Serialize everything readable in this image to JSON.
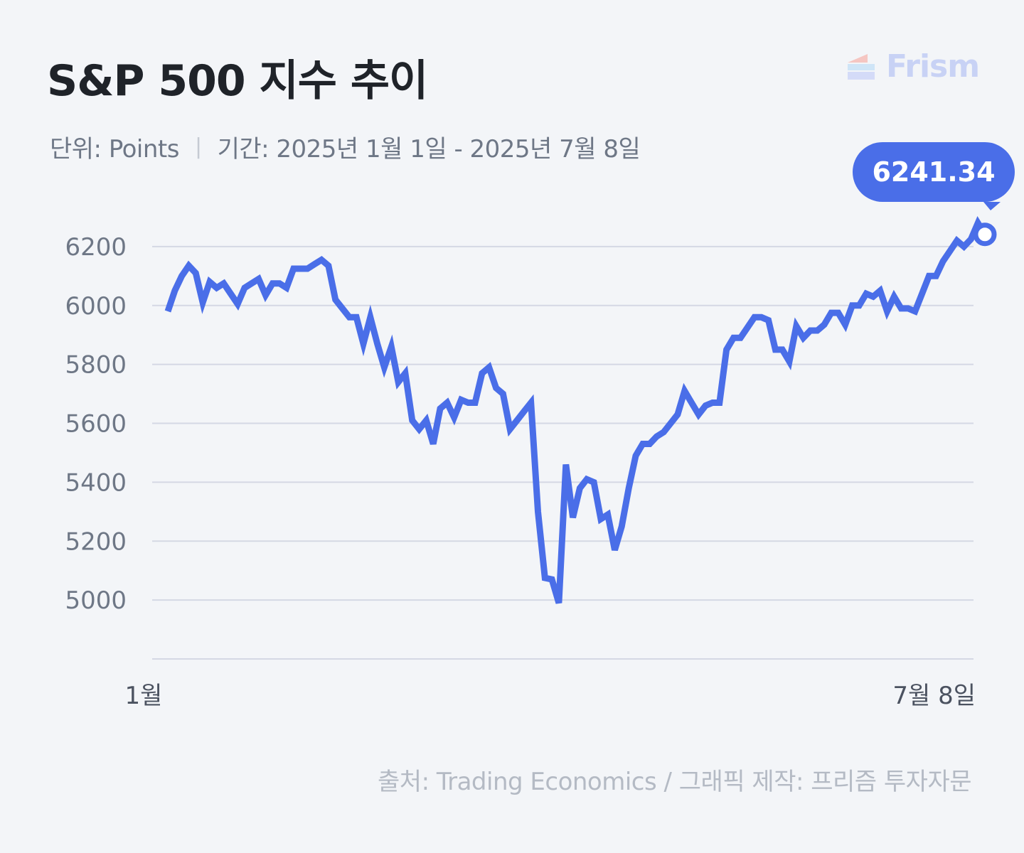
{
  "header": {
    "title": "S&P 500 지수 추이",
    "unit_label": "단위: Points",
    "period_label": "기간: 2025년 1월 1일 - 2025년 7월 8일"
  },
  "brand": {
    "name": "Frism",
    "color": "#c8d2f5"
  },
  "footer": {
    "source": "출처: Trading Economics / 그래픽 제작: 프리즘 투자자문"
  },
  "chart_data": {
    "type": "line",
    "ylim": [
      4800,
      6400
    ],
    "yticks": [
      6200,
      6000,
      5800,
      5600,
      5400,
      5200,
      5000
    ],
    "xtick_labels": {
      "start": "1월",
      "end": "7월 8일"
    },
    "last_value_label": "6241.34",
    "grid": true,
    "colors": {
      "line": "#4a6ee8",
      "grid": "#d4d8e4",
      "callout": "#4a6ee8"
    },
    "series": [
      {
        "values": [
          5980,
          6050,
          6100,
          6135,
          6110,
          6010,
          6080,
          6060,
          6075,
          6040,
          6005,
          6060,
          6075,
          6090,
          6035,
          6075,
          6075,
          6060,
          6125,
          6125,
          6125,
          6140,
          6155,
          6135,
          6020,
          5990,
          5960,
          5960,
          5870,
          5960,
          5870,
          5790,
          5860,
          5740,
          5770,
          5610,
          5580,
          5610,
          5530,
          5650,
          5670,
          5620,
          5680,
          5670,
          5670,
          5770,
          5790,
          5720,
          5700,
          5580,
          5610,
          5640,
          5670,
          5300,
          5075,
          5070,
          4990,
          5460,
          5280,
          5380,
          5410,
          5400,
          5275,
          5290,
          5170,
          5250,
          5380,
          5490,
          5530,
          5530,
          5555,
          5570,
          5600,
          5630,
          5710,
          5670,
          5630,
          5660,
          5670,
          5670,
          5850,
          5890,
          5890,
          5925,
          5960,
          5960,
          5950,
          5850,
          5850,
          5810,
          5930,
          5890,
          5915,
          5915,
          5935,
          5975,
          5975,
          5935,
          6000,
          6000,
          6040,
          6030,
          6050,
          5980,
          6030,
          5990,
          5990,
          5980,
          6040,
          6100,
          6100,
          6150,
          6185,
          6220,
          6200,
          6225,
          6280,
          6241.34
        ]
      }
    ]
  }
}
